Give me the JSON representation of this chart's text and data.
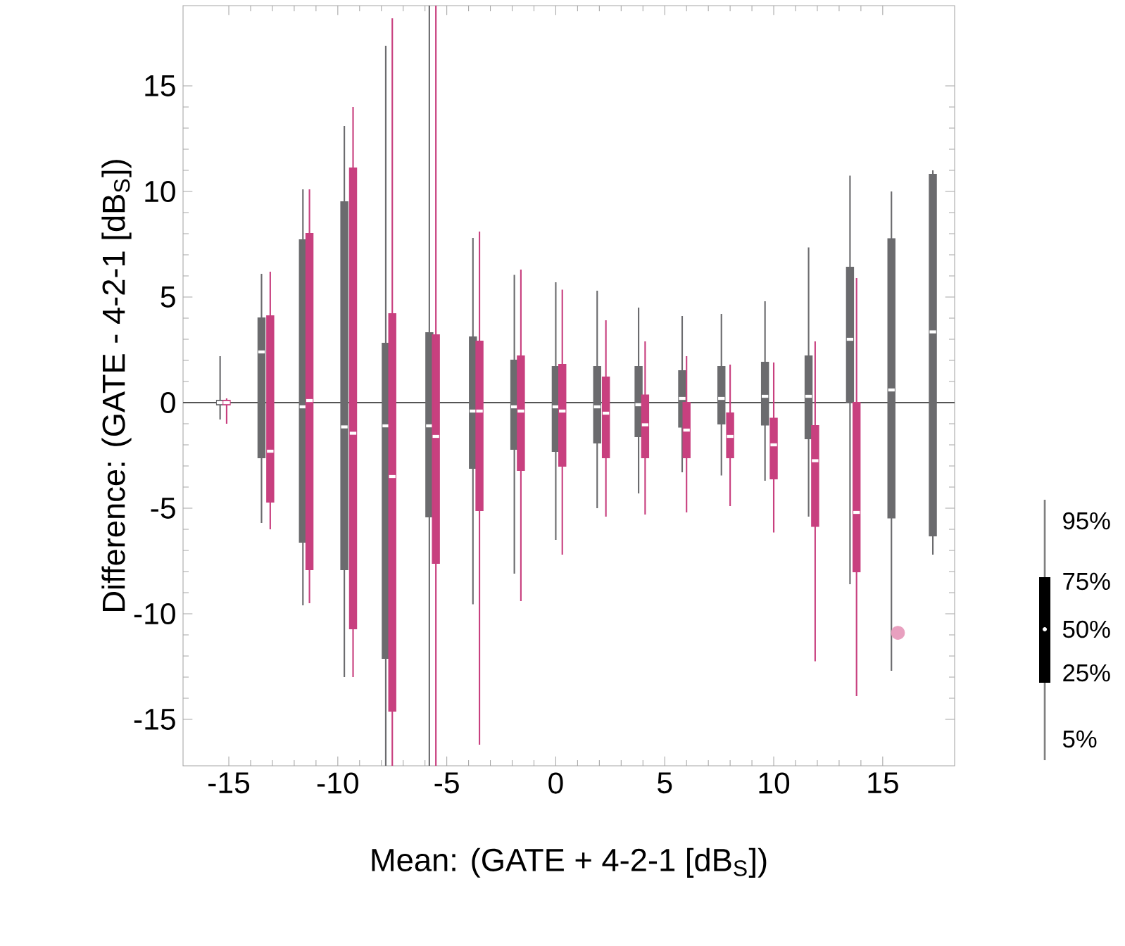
{
  "chart_data": {
    "type": "box",
    "ylabel": "Difference: (GATE - 4-2-1 [dB$_{S}$])",
    "xlabel": "Mean: (GATE + 4-2-1 [dB$_{S}$])",
    "xlim": [
      -17.1,
      18.3
    ],
    "ylim": [
      -17.2,
      18.8
    ],
    "xticks": [
      -15,
      -10,
      -5,
      0,
      5,
      10,
      15
    ],
    "yticks": [
      -15,
      -10,
      -5,
      0,
      5,
      10,
      15
    ],
    "grid": false,
    "ref_lines": [
      {
        "axis": "y",
        "value": 0,
        "color": "#555555"
      }
    ],
    "annotations": [
      "95%",
      "75%",
      "50%",
      "25%",
      "5%"
    ],
    "series": [
      {
        "color": "#6b6b6e",
        "x": [
          -15.4,
          -13.5,
          -11.6,
          -9.7,
          -7.8,
          -5.8,
          -3.8,
          -1.9,
          0,
          1.9,
          3.8,
          5.8,
          7.6,
          9.6,
          11.6,
          13.5,
          15.4,
          17.3
        ],
        "boxes": [
          {
            "low": -0.8,
            "q1": -0.1,
            "median": 0,
            "q3": 0.1,
            "high": 2.2
          },
          {
            "low": -5.7,
            "q1": -2.6,
            "median": 2.4,
            "q3": 4.0,
            "high": 6.1
          },
          {
            "low": -9.6,
            "q1": -6.6,
            "median": -0.2,
            "q3": 7.7,
            "high": 10.1
          },
          {
            "low": -13.0,
            "q1": -7.9,
            "median": -1.15,
            "q3": 9.5,
            "high": 13.1
          },
          {
            "low": -17.2,
            "q1": -12.1,
            "median": -1.1,
            "q3": 2.8,
            "high": 16.9
          },
          {
            "low": -17.2,
            "q1": -5.4,
            "median": -1.1,
            "q3": 3.3,
            "high": 18.8
          },
          {
            "low": -9.55,
            "q1": -3.1,
            "median": -0.4,
            "q3": 3.1,
            "high": 7.8
          },
          {
            "low": -8.1,
            "q1": -2.2,
            "median": -0.2,
            "q3": 2.0,
            "high": 6.05
          },
          {
            "low": -6.5,
            "q1": -2.3,
            "median": -0.2,
            "q3": 1.7,
            "high": 5.7
          },
          {
            "low": -5.0,
            "q1": -1.9,
            "median": -0.2,
            "q3": 1.7,
            "high": 5.3
          },
          {
            "low": -4.3,
            "q1": -1.6,
            "median": -0.1,
            "q3": 1.7,
            "high": 4.5
          },
          {
            "low": -3.3,
            "q1": -1.15,
            "median": 0.2,
            "q3": 1.5,
            "high": 4.1
          },
          {
            "low": -3.45,
            "q1": -1.0,
            "median": 0.2,
            "q3": 1.7,
            "high": 4.2
          },
          {
            "low": -3.7,
            "q1": -1.05,
            "median": 0.3,
            "q3": 1.9,
            "high": 4.8
          },
          {
            "low": -5.4,
            "q1": -1.7,
            "median": 0.3,
            "q3": 2.2,
            "high": 7.35
          },
          {
            "low": -8.6,
            "q1": 0,
            "median": 3.0,
            "q3": 6.4,
            "high": 10.75
          },
          {
            "low": -12.7,
            "q1": -5.45,
            "median": 0.6,
            "q3": 7.75,
            "high": 10.0
          },
          {
            "low": -7.2,
            "q1": -6.3,
            "median": 3.35,
            "q3": 10.8,
            "high": 11.0
          }
        ]
      },
      {
        "color": "#c8407f",
        "x": [
          -15.1,
          -13.1,
          -11.3,
          -9.3,
          -7.5,
          -5.5,
          -3.5,
          -1.6,
          0.3,
          2.3,
          4.1,
          6.0,
          8.0,
          10.0,
          11.9,
          13.8
        ],
        "boxes": [
          {
            "low": -1.0,
            "q1": -0.1,
            "median": 0,
            "q3": 0.1,
            "high": 0.2
          },
          {
            "low": -6.0,
            "q1": -4.7,
            "median": -2.3,
            "q3": 4.1,
            "high": 6.2
          },
          {
            "low": -9.5,
            "q1": -7.9,
            "median": 0.1,
            "q3": 8.0,
            "high": 10.1
          },
          {
            "low": -13.0,
            "q1": -10.7,
            "median": -1.45,
            "q3": 11.1,
            "high": 14.0
          },
          {
            "low": -17.2,
            "q1": -14.6,
            "median": -3.5,
            "q3": 4.2,
            "high": 18.2
          },
          {
            "low": -17.2,
            "q1": -7.6,
            "median": -1.6,
            "q3": 3.2,
            "high": 18.8
          },
          {
            "low": -16.2,
            "q1": -5.1,
            "median": -0.4,
            "q3": 2.9,
            "high": 8.1
          },
          {
            "low": -9.4,
            "q1": -3.2,
            "median": -0.4,
            "q3": 2.2,
            "high": 6.3
          },
          {
            "low": -7.2,
            "q1": -3.0,
            "median": -0.4,
            "q3": 1.8,
            "high": 5.35
          },
          {
            "low": -5.4,
            "q1": -2.6,
            "median": -0.5,
            "q3": 1.2,
            "high": 3.9
          },
          {
            "low": -5.3,
            "q1": -2.6,
            "median": -1.05,
            "q3": 0.35,
            "high": 2.9
          },
          {
            "low": -5.2,
            "q1": -2.6,
            "median": -1.3,
            "q3": 0.0,
            "high": 2.2
          },
          {
            "low": -4.9,
            "q1": -2.6,
            "median": -1.6,
            "q3": -0.5,
            "high": 1.8
          },
          {
            "low": -6.15,
            "q1": -3.6,
            "median": -2.0,
            "q3": -0.75,
            "high": 1.9
          },
          {
            "low": -12.25,
            "q1": -5.85,
            "median": -2.75,
            "q3": -1.1,
            "high": 2.9
          },
          {
            "low": -13.9,
            "q1": -8.0,
            "median": -5.2,
            "q3": 0,
            "high": 5.9
          }
        ]
      },
      {
        "type": "scatter",
        "color": "#e8a0bf",
        "x": [
          15.7
        ],
        "values": [
          -10.9
        ]
      }
    ]
  }
}
